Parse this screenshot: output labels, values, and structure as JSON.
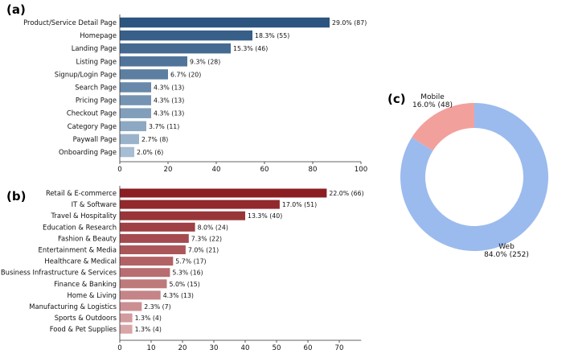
{
  "panels": {
    "a": "(a)",
    "b": "(b)",
    "c": "(c)"
  },
  "colors": {
    "a_dark": "#2b5580",
    "a_light": "#a6bdd3",
    "b_dark": "#8b1e22",
    "b_light": "#d8a6a8",
    "web": "#9bbbee",
    "mobile": "#f2a09c",
    "axis": "#333333"
  },
  "chart_data": [
    {
      "type": "bar",
      "orientation": "horizontal",
      "panel": "(a)",
      "categories": [
        "Product/Service Detail Page",
        "Homepage",
        "Landing Page",
        "Listing Page",
        "Signup/Login Page",
        "Search Page",
        "Pricing Page",
        "Checkout Page",
        "Category Page",
        "Paywall Page",
        "Onboarding Page"
      ],
      "values": [
        87,
        55,
        46,
        28,
        20,
        13,
        13,
        13,
        11,
        8,
        6
      ],
      "labels": [
        "29.0% (87)",
        "18.3% (55)",
        "15.3% (46)",
        "9.3% (28)",
        "6.7% (20)",
        "4.3% (13)",
        "4.3% (13)",
        "4.3% (13)",
        "3.7% (11)",
        "2.7% (8)",
        "2.0% (6)"
      ],
      "xlim": [
        0,
        100
      ],
      "xticks": [
        0,
        20,
        40,
        60,
        80,
        100
      ]
    },
    {
      "type": "bar",
      "orientation": "horizontal",
      "panel": "(b)",
      "categories": [
        "Retail & E-commerce",
        "IT & Software",
        "Travel & Hospitality",
        "Education & Research",
        "Fashion & Beauty",
        "Entertainment & Media",
        "Healthcare & Medical",
        "Business Infrastructure & Services",
        "Finance & Banking",
        "Home & Living",
        "Manufacturing & Logistics",
        "Sports & Outdoors",
        "Food & Pet Supplies"
      ],
      "values": [
        66,
        51,
        40,
        24,
        22,
        21,
        17,
        16,
        15,
        13,
        7,
        4,
        4
      ],
      "labels": [
        "22.0% (66)",
        "17.0% (51)",
        "13.3% (40)",
        "8.0% (24)",
        "7.3% (22)",
        "7.0% (21)",
        "5.7% (17)",
        "5.3% (16)",
        "5.0% (15)",
        "4.3% (13)",
        "2.3% (7)",
        "1.3% (4)",
        "1.3% (4)"
      ],
      "xlim": [
        0,
        77
      ],
      "xticks": [
        0,
        10,
        20,
        30,
        40,
        50,
        60,
        70
      ]
    },
    {
      "type": "pie",
      "style": "donut",
      "panel": "(c)",
      "slices": [
        {
          "name": "Web",
          "value": 252,
          "label": "84.0% (252)"
        },
        {
          "name": "Mobile",
          "value": 48,
          "label": "16.0% (48)"
        }
      ]
    }
  ]
}
